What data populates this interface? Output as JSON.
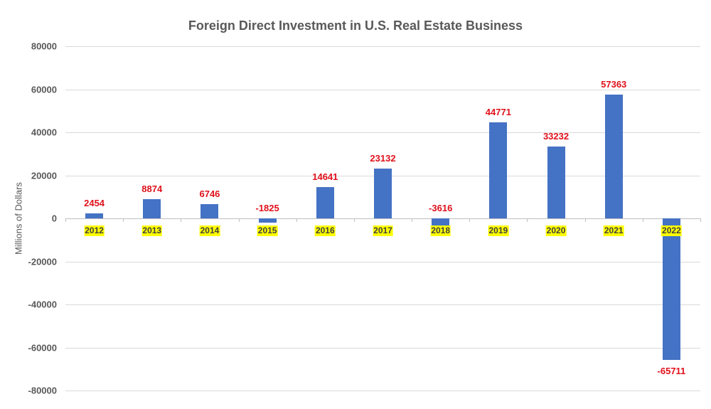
{
  "chart_data": {
    "type": "bar",
    "title": "Foreign Direct Investment in U.S. Real Estate Business",
    "xlabel": "",
    "ylabel": "Millions of Dollars",
    "categories": [
      "2012",
      "2013",
      "2014",
      "2015",
      "2016",
      "2017",
      "2018",
      "2019",
      "2020",
      "2021",
      "2022"
    ],
    "values": [
      2454,
      8874,
      6746,
      -1825,
      14641,
      23132,
      -3616,
      44771,
      33232,
      57363,
      -65711
    ],
    "ylim": [
      -80000,
      80000
    ],
    "yticks": [
      "80000",
      "60000",
      "40000",
      "20000",
      "0",
      "-20000",
      "-40000",
      "-60000",
      "-80000"
    ],
    "grid": true,
    "legend": "none",
    "bar_color": "#4472c4",
    "data_label_color": "#e0101a",
    "category_label_highlight": "#ffff00"
  }
}
